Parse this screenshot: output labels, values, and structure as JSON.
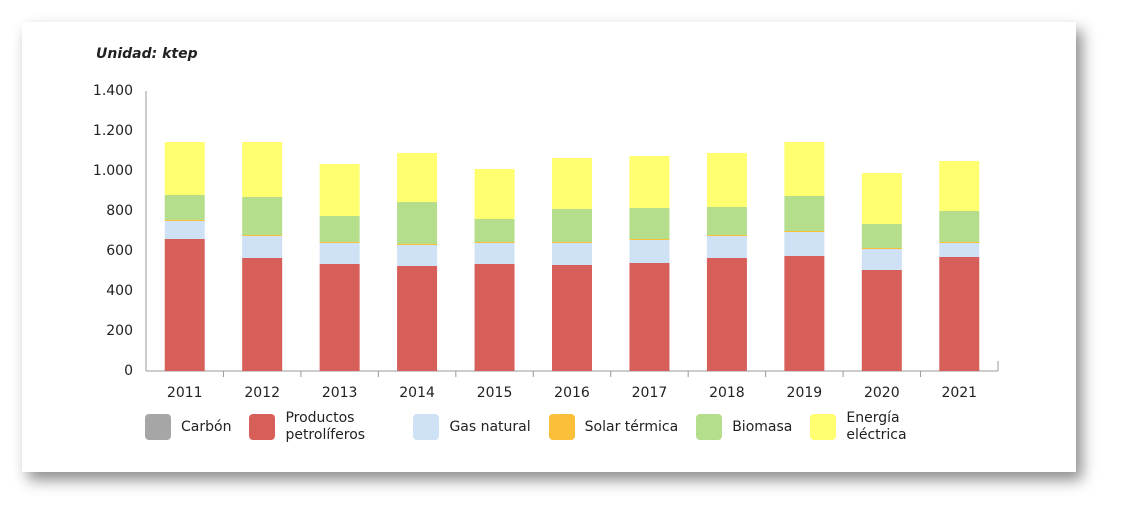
{
  "chart_data": {
    "type": "stacked-bar",
    "title": "Unidad: ktep",
    "categories": [
      "2011",
      "2012",
      "2013",
      "2014",
      "2015",
      "2016",
      "2017",
      "2018",
      "2019",
      "2020",
      "2021"
    ],
    "series": [
      {
        "name": "Carbón",
        "color": "#a6a6a6",
        "values": [
          0,
          0,
          0,
          0,
          0,
          0,
          0,
          0,
          0,
          0,
          0
        ]
      },
      {
        "name": "Productos petrolíferos",
        "color": "#d75f5a",
        "values": [
          660,
          565,
          535,
          525,
          535,
          530,
          540,
          565,
          575,
          505,
          570
        ]
      },
      {
        "name": "Gas natural",
        "color": "#cfe2f5",
        "values": [
          90,
          110,
          105,
          105,
          105,
          110,
          115,
          110,
          120,
          105,
          70
        ]
      },
      {
        "name": "Solar térmica",
        "color": "#fbbf3a",
        "values": [
          5,
          5,
          5,
          5,
          5,
          5,
          5,
          5,
          5,
          5,
          5
        ]
      },
      {
        "name": "Biomasa",
        "color": "#b4de8c",
        "values": [
          125,
          190,
          130,
          210,
          115,
          165,
          155,
          140,
          175,
          120,
          155
        ]
      },
      {
        "name": "Energía eléctrica",
        "color": "#ffff70",
        "values": [
          265,
          275,
          260,
          245,
          250,
          255,
          260,
          270,
          270,
          255,
          250
        ]
      }
    ],
    "ylim": [
      0,
      1400
    ],
    "yticks": [
      0,
      200,
      400,
      600,
      800,
      {
        "value": 1000,
        "label": "1.000"
      },
      {
        "value": 1200,
        "label": "1.200"
      },
      {
        "value": 1400,
        "label": "1.400"
      }
    ]
  }
}
